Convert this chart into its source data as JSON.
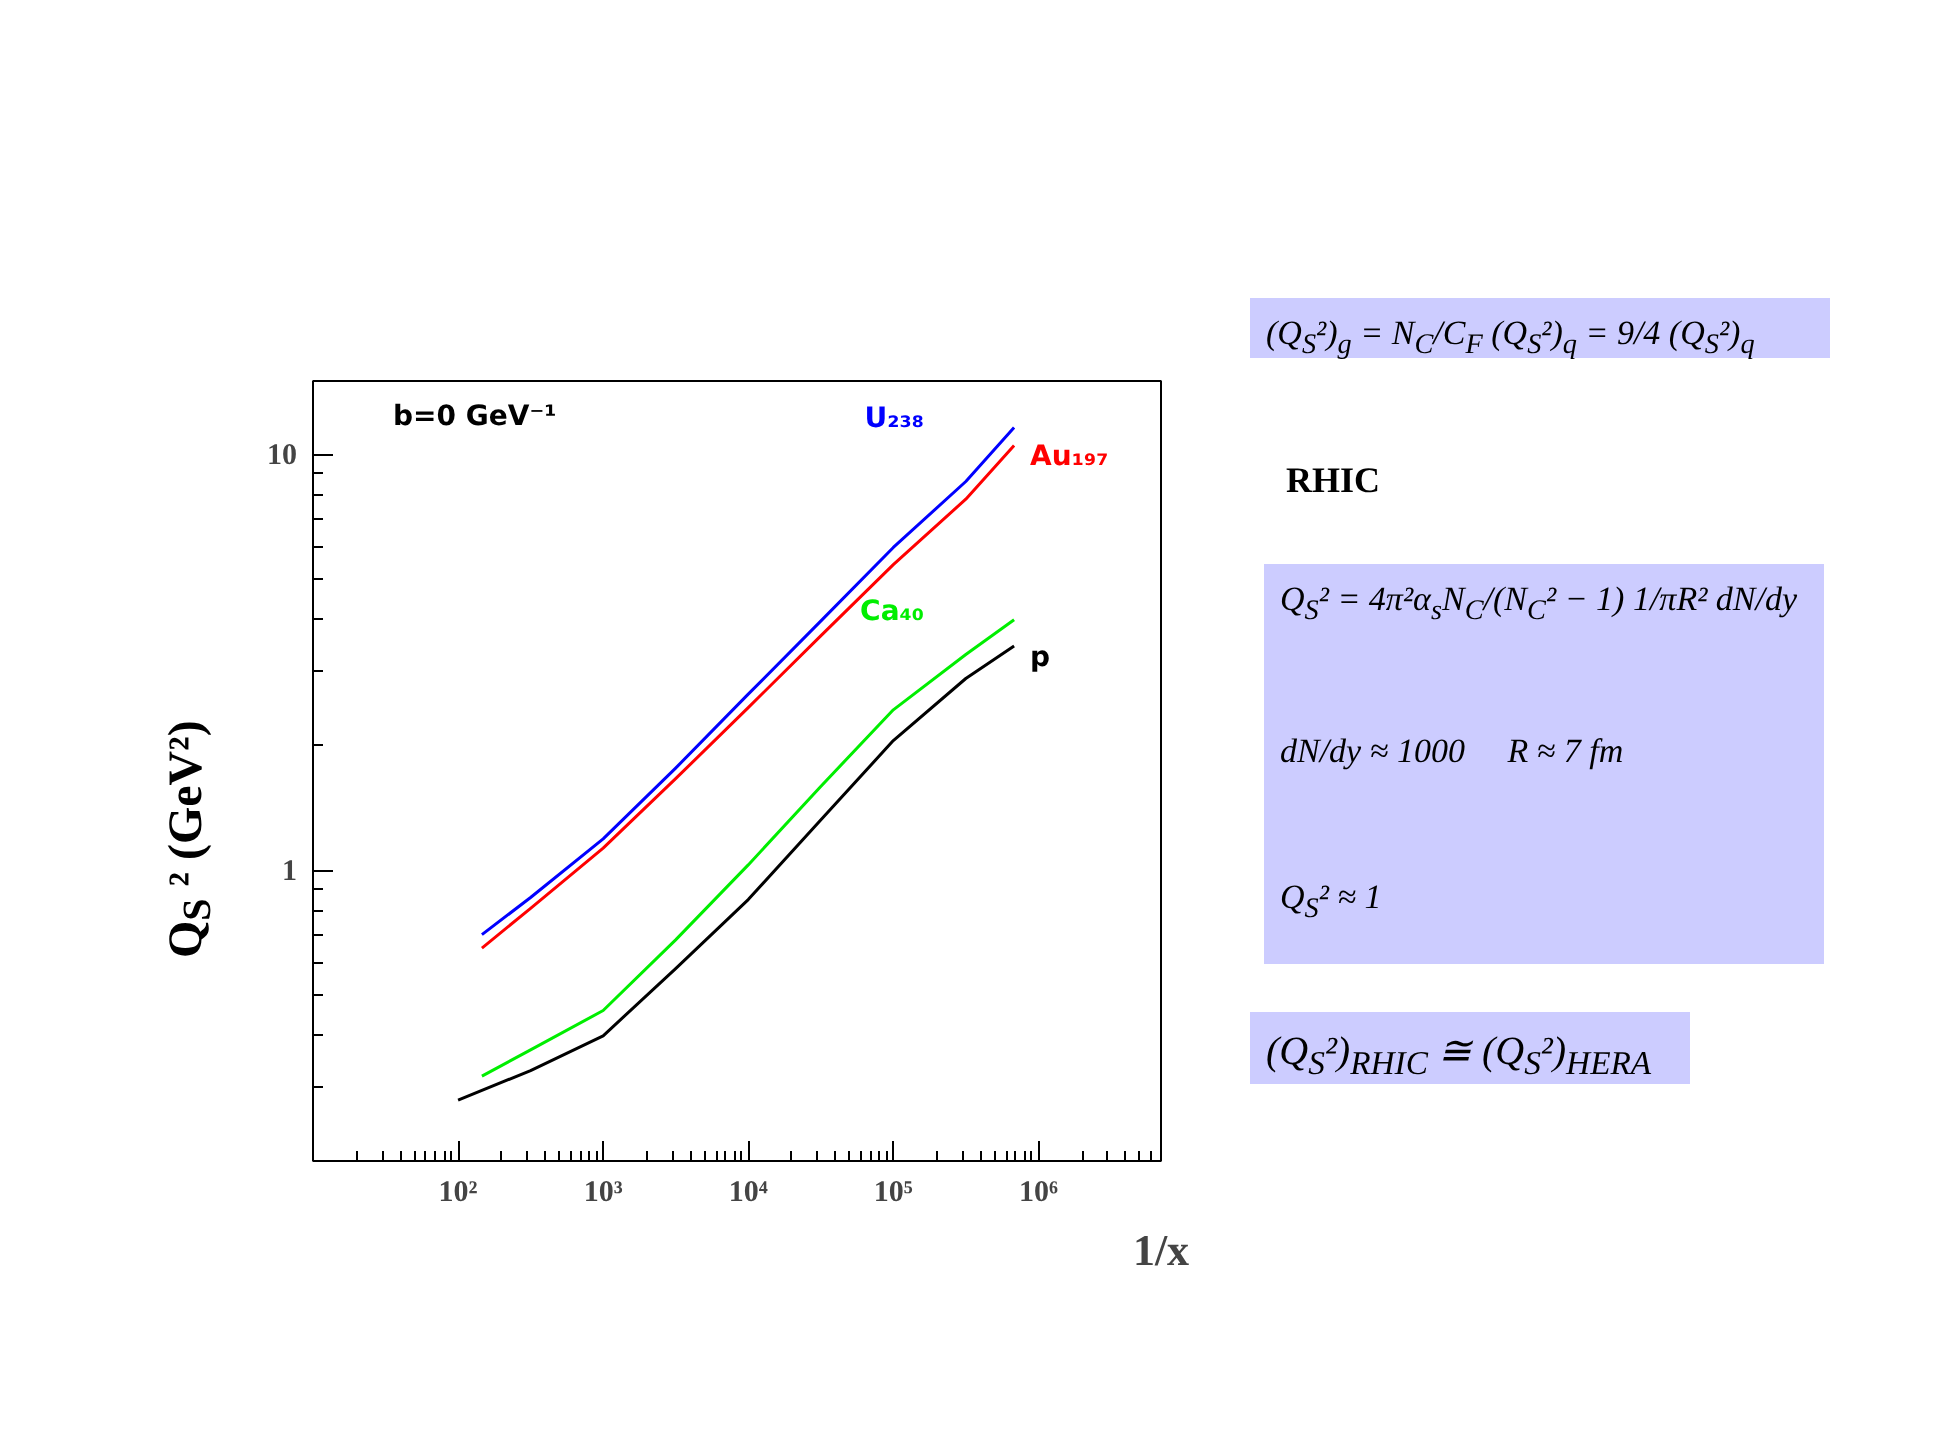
{
  "chart_data": {
    "type": "line",
    "xlabel": "1/x",
    "ylabel": "Q$_{S}$ ² (GeV²)",
    "log": "xy",
    "grid": false,
    "xlim": [
      10,
      7000000
    ],
    "ylim": [
      0.2,
      15
    ],
    "xticks": [
      {
        "value": 100,
        "label": "10²"
      },
      {
        "value": 1000,
        "label": "10³"
      },
      {
        "value": 10000,
        "label": "10⁴"
      },
      {
        "value": 100000,
        "label": "10⁵"
      },
      {
        "value": 1000000,
        "label": "10⁶"
      }
    ],
    "yticks": [
      1,
      10
    ],
    "annotations": [
      "b=0 GeV⁻¹",
      "(Q$_{S}$²)$_{g}$ = N$_{C}$/C$_{F}$ (Q$_{S}$²)$_{q}$ = 9/4 (Q$_{S}$²)$_{q}$",
      "RHIC",
      "Q$_{S}$² = 4π²α$_{s}$N$_{C}$/(N$_{C}$² − 1) 1/πR² dN/dy",
      "dN/dy ≈ 1000",
      "R ≈ 7 fm",
      "Q$_{S}$² ≈ 1",
      "(Q$_{S}$²)$_{RHIC}$ ≅ (Q$_{S}$²)$_{HERA}$"
    ],
    "series": [
      {
        "name": "U₂₃₈",
        "color": "#0000ff",
        "x": [
          146,
          316,
          1000,
          3160,
          10000,
          31600,
          100000,
          316000,
          680000
        ],
        "values": [
          0.7,
          0.86,
          1.19,
          1.76,
          2.65,
          3.97,
          5.97,
          8.6,
          11.6
        ]
      },
      {
        "name": "Au₁₉₇",
        "color": "#ff0000",
        "x": [
          146,
          316,
          1000,
          3160,
          10000,
          31600,
          100000,
          316000,
          680000
        ],
        "values": [
          0.65,
          0.81,
          1.13,
          1.66,
          2.46,
          3.66,
          5.43,
          7.8,
          10.5
        ]
      },
      {
        "name": "Ca₄₀",
        "color": "#00ee00",
        "x": [
          146,
          316,
          1000,
          3160,
          10000,
          31600,
          100000,
          316000,
          680000
        ],
        "values": [
          0.32,
          0.37,
          0.46,
          0.68,
          1.03,
          1.59,
          2.43,
          3.3,
          4.0
        ]
      },
      {
        "name": "p",
        "color": "#000000",
        "x": [
          100,
          316,
          1000,
          3160,
          10000,
          31600,
          100000,
          316000,
          680000
        ],
        "values": [
          0.28,
          0.33,
          0.4,
          0.58,
          0.85,
          1.32,
          2.05,
          2.89,
          3.46
        ]
      }
    ]
  }
}
